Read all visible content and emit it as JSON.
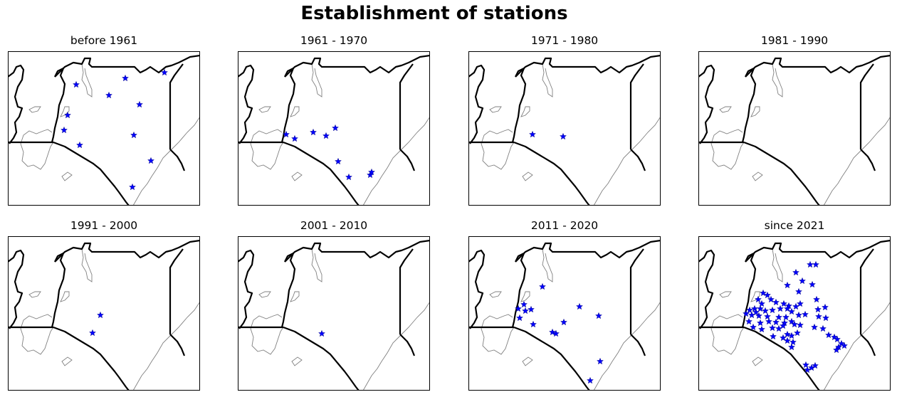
{
  "figure": {
    "title": "Establishment of stations"
  },
  "panels": [
    {
      "title": "before 1961",
      "stations": [
        [
          107,
          119
        ],
        [
          153,
          134
        ],
        [
          176,
          110
        ],
        [
          231,
          102
        ],
        [
          196,
          147
        ],
        [
          95,
          162
        ],
        [
          90,
          183
        ],
        [
          112,
          204
        ],
        [
          188,
          190
        ],
        [
          212,
          226
        ],
        [
          186,
          263
        ]
      ]
    },
    {
      "title": "1961 - 1970",
      "stations": [
        [
          402,
          189
        ],
        [
          414,
          195
        ],
        [
          440,
          186
        ],
        [
          458,
          191
        ],
        [
          471,
          180
        ],
        [
          475,
          227
        ],
        [
          490,
          249
        ],
        [
          520,
          246
        ],
        [
          522,
          242
        ]
      ]
    },
    {
      "title": "1971 - 1980",
      "stations": [
        [
          748,
          189
        ],
        [
          791,
          192
        ]
      ]
    },
    {
      "title": "1981 - 1990",
      "stations": []
    },
    {
      "title": "1991 - 2000",
      "stations": [
        [
          141,
          443
        ],
        [
          130,
          468
        ]
      ]
    },
    {
      "title": "2001 - 2010",
      "stations": [
        [
          452,
          469
        ]
      ]
    },
    {
      "title": "2011 - 2020",
      "stations": [
        [
          762,
          403
        ],
        [
          736,
          428
        ],
        [
          728,
          434
        ],
        [
          738,
          437
        ],
        [
          746,
          435
        ],
        [
          730,
          447
        ],
        [
          814,
          431
        ],
        [
          841,
          444
        ],
        [
          792,
          453
        ],
        [
          749,
          456
        ],
        [
          776,
          467
        ],
        [
          781,
          469
        ],
        [
          843,
          508
        ],
        [
          829,
          535
        ]
      ]
    },
    {
      "title": "since 2021",
      "stations": [
        [
          1138,
          372
        ],
        [
          1146,
          372
        ],
        [
          1118,
          383
        ],
        [
          1127,
          395
        ],
        [
          1106,
          401
        ],
        [
          1122,
          410
        ],
        [
          1141,
          400
        ],
        [
          1072,
          412
        ],
        [
          1078,
          415
        ],
        [
          1065,
          421
        ],
        [
          1083,
          421
        ],
        [
          1070,
          427
        ],
        [
          1090,
          425
        ],
        [
          1101,
          427
        ],
        [
          1108,
          430
        ],
        [
          1118,
          431
        ],
        [
          1124,
          427
        ],
        [
          1147,
          421
        ],
        [
          1159,
          432
        ],
        [
          1149,
          435
        ],
        [
          1060,
          434
        ],
        [
          1068,
          434
        ],
        [
          1053,
          436
        ],
        [
          1062,
          439
        ],
        [
          1075,
          437
        ],
        [
          1085,
          436
        ],
        [
          1096,
          434
        ],
        [
          1106,
          434
        ],
        [
          1112,
          438
        ],
        [
          1048,
          441
        ],
        [
          1056,
          443
        ],
        [
          1066,
          444
        ],
        [
          1078,
          445
        ],
        [
          1094,
          446
        ],
        [
          1104,
          446
        ],
        [
          1122,
          443
        ],
        [
          1131,
          442
        ],
        [
          1150,
          445
        ],
        [
          1160,
          447
        ],
        [
          1052,
          452
        ],
        [
          1068,
          454
        ],
        [
          1080,
          452
        ],
        [
          1090,
          453
        ],
        [
          1102,
          454
        ],
        [
          1112,
          452
        ],
        [
          1116,
          456
        ],
        [
          1124,
          457
        ],
        [
          1058,
          460
        ],
        [
          1070,
          463
        ],
        [
          1085,
          461
        ],
        [
          1094,
          462
        ],
        [
          1100,
          458
        ],
        [
          1144,
          460
        ],
        [
          1156,
          462
        ],
        [
          1106,
          470
        ],
        [
          1112,
          472
        ],
        [
          1120,
          468
        ],
        [
          1100,
          475
        ],
        [
          1086,
          473
        ],
        [
          1164,
          471
        ],
        [
          1172,
          474
        ],
        [
          1176,
          477
        ],
        [
          1106,
          479
        ],
        [
          1114,
          481
        ],
        [
          1182,
          483
        ],
        [
          1186,
          486
        ],
        [
          1178,
          488
        ],
        [
          1175,
          492
        ],
        [
          1112,
          488
        ],
        [
          1132,
          513
        ],
        [
          1140,
          517
        ],
        [
          1145,
          514
        ],
        [
          1134,
          520
        ]
      ]
    }
  ]
}
